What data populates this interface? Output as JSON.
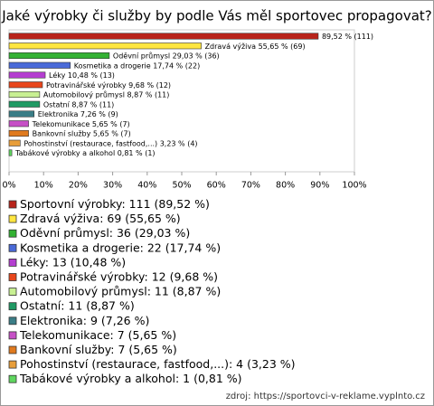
{
  "chart_data": {
    "type": "bar",
    "orientation": "horizontal",
    "title": "Jaké výrobky či služby by podle Vás měl sportovec propagovat?",
    "values": [
      89.52,
      55.65,
      29.03,
      17.74,
      10.48,
      9.68,
      8.87,
      8.87,
      7.26,
      5.65,
      5.65,
      3.23,
      0.81
    ],
    "value_labels": [
      "89,52 % (111)",
      "Zdravá výživa 55,65 % (69)",
      "Oděvní průmysl 29,03 % (36)",
      "Kosmetika a drogerie 17,74 % (22)",
      "Léky 10,48 % (13)",
      "Potravinářské výrobky 9,68 % (12)",
      "Automobilový průmysl 8,87 % (11)",
      "Ostatní 8,87 % (11)",
      "Elektronika 7,26 % (9)",
      "Telekomunikace 5,65 % (7)",
      "Bankovní služby 5,65 % (7)",
      "Pohostinství (restaurace, fastfood,...) 3,23 % (4)",
      "Tabákové výrobky a alkohol 0,81 % (1)"
    ],
    "colors": [
      "#b8231a",
      "#ffe640",
      "#33b233",
      "#4a6ad8",
      "#b43ed0",
      "#e8461c",
      "#c8f092",
      "#1f9a64",
      "#3a7d86",
      "#c650c6",
      "#e07a1e",
      "#e89e3a",
      "#5fd65f"
    ],
    "legend": [
      "Sportovní výrobky: 111 (89,52 %)",
      "Zdravá výživa: 69 (55,65 %)",
      "Oděvní průmysl: 36 (29,03 %)",
      "Kosmetika a drogerie: 22 (17,74 %)",
      "Léky: 13 (10,48 %)",
      "Potravinářské výrobky: 12 (9,68 %)",
      "Automobilový průmysl: 11 (8,87 %)",
      "Ostatní: 11 (8,87 %)",
      "Elektronika: 9 (7,26 %)",
      "Telekomunikace: 7 (5,65 %)",
      "Bankovní služby: 7 (5,65 %)",
      "Pohostinství (restaurace, fastfood,...): 4 (3,23 %)",
      "Tabákové výrobky a alkohol: 1 (0,81 %)"
    ],
    "xlim": [
      0,
      100
    ],
    "xticks": [
      {
        "value": 0,
        "label": "0%"
      },
      {
        "value": 10,
        "label": "10%"
      },
      {
        "value": 20,
        "label": "20%"
      },
      {
        "value": 30,
        "label": "30%"
      },
      {
        "value": 40,
        "label": "40%"
      },
      {
        "value": 50,
        "label": "50%"
      },
      {
        "value": 60,
        "label": "60%"
      },
      {
        "value": 70,
        "label": "70%"
      },
      {
        "value": 80,
        "label": "80%"
      },
      {
        "value": 90,
        "label": "90%"
      },
      {
        "value": 100,
        "label": "100%"
      }
    ],
    "source": "zdroj: https://sportovci-v-reklame.vyplnto.cz"
  }
}
